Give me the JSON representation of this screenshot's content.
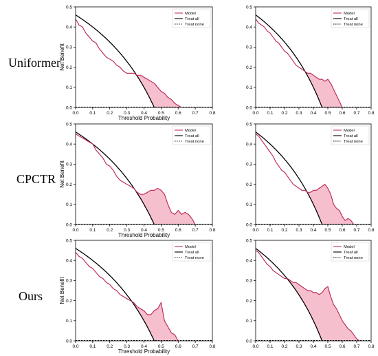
{
  "row_labels": [
    "Uniformer",
    "CPCTR",
    "Ours"
  ],
  "colors": {
    "model": "#c0305a",
    "fill": "#f2a9bd",
    "treat_all": "#000000",
    "treat_none": "#000000"
  },
  "chart_data": [
    {
      "type": "line",
      "panel": "uniformer-left",
      "xlabel": "Threshold Probability",
      "ylabel": "Net Benefit",
      "xlim": [
        0,
        0.8
      ],
      "ylim": [
        0,
        0.5
      ],
      "xticks": [
        "0.0",
        "0.1",
        "0.2",
        "0.3",
        "0.4",
        "0.5",
        "0.6",
        "0.7",
        "0.8"
      ],
      "yticks": [
        "0.0",
        "0.1",
        "0.2",
        "0.3",
        "0.4",
        "0.5"
      ],
      "legend": {
        "position": "top-right",
        "entries": [
          "Model",
          "Treat all",
          "Treat none"
        ]
      },
      "treat_all_prevalence": 0.46,
      "series": [
        {
          "name": "Model",
          "x": [
            0.0,
            0.02,
            0.04,
            0.06,
            0.08,
            0.1,
            0.12,
            0.14,
            0.16,
            0.18,
            0.2,
            0.22,
            0.24,
            0.26,
            0.28,
            0.3,
            0.32,
            0.34,
            0.36,
            0.38,
            0.4,
            0.42,
            0.44,
            0.46,
            0.48,
            0.5,
            0.52,
            0.54,
            0.56,
            0.58,
            0.6,
            0.62
          ],
          "y": [
            0.44,
            0.41,
            0.4,
            0.37,
            0.35,
            0.33,
            0.32,
            0.29,
            0.27,
            0.25,
            0.24,
            0.23,
            0.21,
            0.2,
            0.18,
            0.17,
            0.17,
            0.17,
            0.16,
            0.16,
            0.15,
            0.14,
            0.13,
            0.12,
            0.1,
            0.08,
            0.07,
            0.05,
            0.04,
            0.02,
            0.01,
            0.0
          ]
        }
      ]
    },
    {
      "type": "line",
      "panel": "uniformer-right",
      "xlabel": "",
      "ylabel": "",
      "xlim": [
        0,
        0.8
      ],
      "ylim": [
        0,
        0.5
      ],
      "xticks": [
        "0.0",
        "0.1",
        "0.2",
        "0.3",
        "0.4",
        "0.5",
        "0.6",
        "0.7",
        "0.8"
      ],
      "yticks": [
        "0.0",
        "0.1",
        "0.2",
        "0.3",
        "0.4",
        "0.5"
      ],
      "legend": {
        "position": "top-right",
        "entries": [
          "Model",
          "Treat all",
          "Treat none"
        ]
      },
      "treat_all_prevalence": 0.46,
      "series": [
        {
          "name": "Model",
          "x": [
            0.0,
            0.02,
            0.04,
            0.06,
            0.08,
            0.1,
            0.12,
            0.14,
            0.16,
            0.18,
            0.2,
            0.22,
            0.24,
            0.26,
            0.28,
            0.3,
            0.32,
            0.34,
            0.36,
            0.38,
            0.4,
            0.42,
            0.44,
            0.46,
            0.48,
            0.5,
            0.52,
            0.54,
            0.56,
            0.58,
            0.6
          ],
          "y": [
            0.44,
            0.42,
            0.41,
            0.4,
            0.38,
            0.37,
            0.35,
            0.33,
            0.32,
            0.3,
            0.28,
            0.27,
            0.25,
            0.23,
            0.21,
            0.2,
            0.19,
            0.18,
            0.17,
            0.17,
            0.16,
            0.15,
            0.14,
            0.14,
            0.13,
            0.14,
            0.12,
            0.09,
            0.06,
            0.03,
            0.0
          ]
        }
      ]
    },
    {
      "type": "line",
      "panel": "cpctr-left",
      "xlabel": "Threshold Probability",
      "ylabel": "Net Benefit",
      "xlim": [
        0,
        0.8
      ],
      "ylim": [
        0,
        0.5
      ],
      "xticks": [
        "0.0",
        "0.1",
        "0.2",
        "0.3",
        "0.4",
        "0.5",
        "0.6",
        "0.7",
        "0.8"
      ],
      "yticks": [
        "0.0",
        "0.1",
        "0.2",
        "0.3",
        "0.4",
        "0.5"
      ],
      "legend": {
        "position": "top-right",
        "entries": [
          "Model",
          "Treat all",
          "Treat none"
        ]
      },
      "treat_all_prevalence": 0.46,
      "series": [
        {
          "name": "Model",
          "x": [
            0.0,
            0.02,
            0.04,
            0.06,
            0.08,
            0.1,
            0.12,
            0.14,
            0.16,
            0.18,
            0.2,
            0.22,
            0.24,
            0.26,
            0.28,
            0.3,
            0.32,
            0.34,
            0.36,
            0.38,
            0.4,
            0.42,
            0.44,
            0.46,
            0.48,
            0.5,
            0.52,
            0.54,
            0.56,
            0.58,
            0.6,
            0.62,
            0.64,
            0.66,
            0.68,
            0.7
          ],
          "y": [
            0.45,
            0.44,
            0.43,
            0.42,
            0.41,
            0.4,
            0.37,
            0.35,
            0.33,
            0.3,
            0.29,
            0.27,
            0.24,
            0.22,
            0.21,
            0.2,
            0.19,
            0.18,
            0.16,
            0.15,
            0.15,
            0.16,
            0.17,
            0.17,
            0.18,
            0.17,
            0.15,
            0.1,
            0.06,
            0.05,
            0.07,
            0.05,
            0.06,
            0.05,
            0.03,
            0.0
          ]
        }
      ]
    },
    {
      "type": "line",
      "panel": "cpctr-right",
      "xlabel": "",
      "ylabel": "",
      "xlim": [
        0,
        0.8
      ],
      "ylim": [
        0,
        0.5
      ],
      "xticks": [
        "0.0",
        "0.1",
        "0.2",
        "0.3",
        "0.4",
        "0.5",
        "0.6",
        "0.7",
        "0.8"
      ],
      "yticks": [
        "0.0",
        "0.1",
        "0.2",
        "0.3",
        "0.4",
        "0.5"
      ],
      "legend": {
        "position": "top-right",
        "entries": [
          "Model",
          "Treat all",
          "Treat none"
        ]
      },
      "treat_all_prevalence": 0.46,
      "series": [
        {
          "name": "Model",
          "x": [
            0.0,
            0.02,
            0.04,
            0.06,
            0.08,
            0.1,
            0.12,
            0.14,
            0.16,
            0.18,
            0.2,
            0.22,
            0.24,
            0.26,
            0.28,
            0.3,
            0.32,
            0.34,
            0.36,
            0.38,
            0.4,
            0.42,
            0.44,
            0.46,
            0.48,
            0.5,
            0.52,
            0.54,
            0.56,
            0.58,
            0.6,
            0.62,
            0.64,
            0.66,
            0.68
          ],
          "y": [
            0.45,
            0.44,
            0.42,
            0.4,
            0.38,
            0.36,
            0.34,
            0.31,
            0.29,
            0.27,
            0.26,
            0.24,
            0.22,
            0.2,
            0.19,
            0.18,
            0.17,
            0.17,
            0.16,
            0.16,
            0.17,
            0.17,
            0.18,
            0.19,
            0.2,
            0.18,
            0.15,
            0.1,
            0.08,
            0.07,
            0.04,
            0.02,
            0.03,
            0.02,
            0.0
          ]
        }
      ]
    },
    {
      "type": "line",
      "panel": "ours-left",
      "xlabel": "Threshold Probability",
      "ylabel": "Net Benefit",
      "xlim": [
        0,
        0.8
      ],
      "ylim": [
        0,
        0.5
      ],
      "xticks": [
        "0.0",
        "0.1",
        "0.2",
        "0.3",
        "0.4",
        "0.5",
        "0.6",
        "0.7",
        "0.8"
      ],
      "yticks": [
        "0.0",
        "0.1",
        "0.2",
        "0.3",
        "0.4",
        "0.5"
      ],
      "legend": {
        "position": "top-right",
        "entries": [
          "Model",
          "Treat all",
          "Treat none"
        ]
      },
      "treat_all_prevalence": 0.46,
      "series": [
        {
          "name": "Model",
          "x": [
            0.0,
            0.02,
            0.04,
            0.06,
            0.08,
            0.1,
            0.12,
            0.14,
            0.16,
            0.18,
            0.2,
            0.22,
            0.24,
            0.26,
            0.28,
            0.3,
            0.32,
            0.34,
            0.36,
            0.38,
            0.4,
            0.42,
            0.44,
            0.46,
            0.48,
            0.5,
            0.52,
            0.54,
            0.56,
            0.58,
            0.6
          ],
          "y": [
            0.44,
            0.42,
            0.41,
            0.39,
            0.37,
            0.36,
            0.34,
            0.32,
            0.31,
            0.29,
            0.28,
            0.26,
            0.25,
            0.23,
            0.22,
            0.21,
            0.2,
            0.19,
            0.17,
            0.16,
            0.15,
            0.13,
            0.13,
            0.15,
            0.16,
            0.19,
            0.1,
            0.07,
            0.04,
            0.03,
            0.0
          ]
        }
      ]
    },
    {
      "type": "line",
      "panel": "ours-right",
      "xlabel": "",
      "ylabel": "",
      "xlim": [
        0,
        0.8
      ],
      "ylim": [
        0,
        0.5
      ],
      "xticks": [
        "0.0",
        "0.1",
        "0.2",
        "0.3",
        "0.4",
        "0.5",
        "0.6",
        "0.7",
        "0.8"
      ],
      "yticks": [
        "0.0",
        "0.1",
        "0.2",
        "0.3",
        "0.4",
        "0.5"
      ],
      "legend": {
        "position": "top-right",
        "entries": [
          "Model",
          "Treat all",
          "Treat none"
        ]
      },
      "treat_all_prevalence": 0.46,
      "series": [
        {
          "name": "Model",
          "x": [
            0.0,
            0.02,
            0.04,
            0.06,
            0.08,
            0.1,
            0.12,
            0.14,
            0.16,
            0.18,
            0.2,
            0.22,
            0.24,
            0.26,
            0.28,
            0.3,
            0.32,
            0.34,
            0.36,
            0.38,
            0.4,
            0.42,
            0.44,
            0.46,
            0.48,
            0.5,
            0.52,
            0.54,
            0.56,
            0.58,
            0.6,
            0.62,
            0.64,
            0.66,
            0.68,
            0.7,
            0.72
          ],
          "y": [
            0.45,
            0.44,
            0.42,
            0.4,
            0.38,
            0.37,
            0.35,
            0.34,
            0.33,
            0.32,
            0.31,
            0.31,
            0.3,
            0.29,
            0.29,
            0.28,
            0.27,
            0.26,
            0.25,
            0.25,
            0.24,
            0.24,
            0.23,
            0.24,
            0.26,
            0.27,
            0.22,
            0.18,
            0.16,
            0.13,
            0.1,
            0.08,
            0.06,
            0.05,
            0.03,
            0.01,
            0.0
          ]
        }
      ]
    }
  ]
}
